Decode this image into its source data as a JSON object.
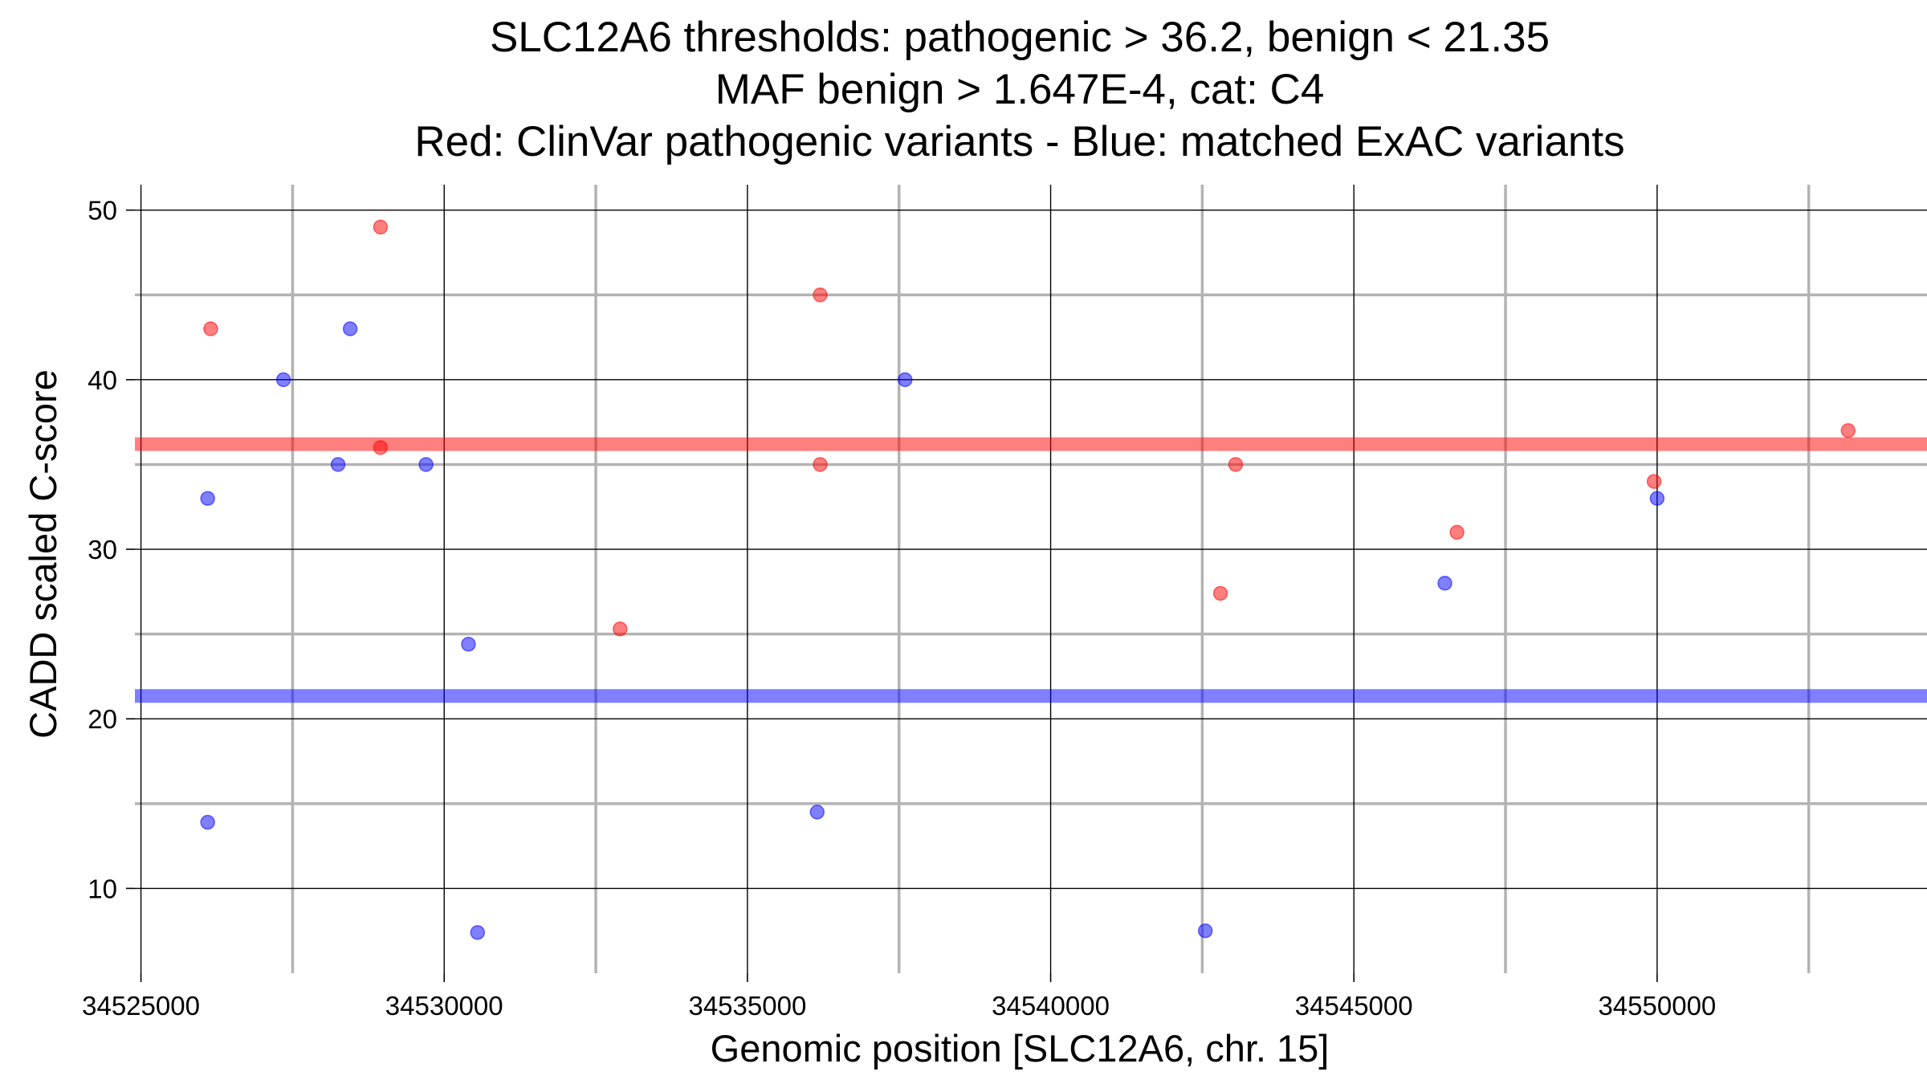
{
  "chart_data": {
    "type": "scatter",
    "title": [
      "SLC12A6 thresholds: pathogenic > 36.2, benign < 21.35",
      "MAF benign > 1.647E-4, cat: C4",
      "Red: ClinVar pathogenic variants - Blue: matched ExAC variants"
    ],
    "xlabel": "Genomic position [SLC12A6, chr. 15]",
    "ylabel": "CADD scaled C-score",
    "xlim": [
      34524900,
      34554450
    ],
    "ylim": [
      5,
      51.5
    ],
    "x_ticks": [
      34525000,
      34530000,
      34535000,
      34540000,
      34545000,
      34550000
    ],
    "x_tick_labels": [
      "34525000",
      "34530000",
      "34535000",
      "34540000",
      "34545000",
      "34550000"
    ],
    "x_minor_grid": [
      34527500,
      34532500,
      34537500,
      34542500,
      34547500,
      34552500
    ],
    "y_ticks": [
      10,
      20,
      30,
      40,
      50
    ],
    "y_tick_labels": [
      "10",
      "20",
      "30",
      "40",
      "50"
    ],
    "y_minor_grid": [
      15,
      25,
      35,
      45
    ],
    "grid": true,
    "thresholds": [
      {
        "value": 36.2,
        "color": "#ff0000"
      },
      {
        "value": 21.35,
        "color": "#0000ff"
      }
    ],
    "series": [
      {
        "color": "#ff0000",
        "points": [
          {
            "x": 34526150,
            "y": 43
          },
          {
            "x": 34528950,
            "y": 49
          },
          {
            "x": 34528950,
            "y": 36
          },
          {
            "x": 34532900,
            "y": 25.3
          },
          {
            "x": 34536200,
            "y": 45
          },
          {
            "x": 34536200,
            "y": 35
          },
          {
            "x": 34542800,
            "y": 27.4
          },
          {
            "x": 34543050,
            "y": 35
          },
          {
            "x": 34546700,
            "y": 31
          },
          {
            "x": 34549950,
            "y": 34
          },
          {
            "x": 34553150,
            "y": 37
          }
        ]
      },
      {
        "color": "#0000ff",
        "points": [
          {
            "x": 34526100,
            "y": 33
          },
          {
            "x": 34526100,
            "y": 13.9
          },
          {
            "x": 34527350,
            "y": 40
          },
          {
            "x": 34528250,
            "y": 35
          },
          {
            "x": 34528450,
            "y": 43
          },
          {
            "x": 34529700,
            "y": 35
          },
          {
            "x": 34530400,
            "y": 24.4
          },
          {
            "x": 34530550,
            "y": 7.4
          },
          {
            "x": 34536150,
            "y": 14.5
          },
          {
            "x": 34537600,
            "y": 40
          },
          {
            "x": 34542550,
            "y": 7.5
          },
          {
            "x": 34546500,
            "y": 28
          },
          {
            "x": 34550000,
            "y": 33
          }
        ]
      }
    ]
  }
}
